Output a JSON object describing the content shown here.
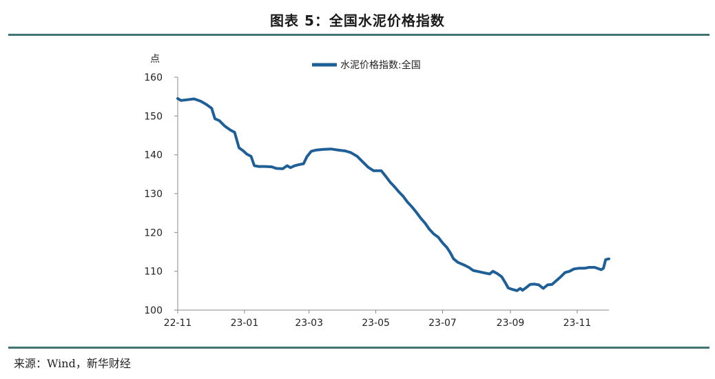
{
  "figure_title": "图表 5：全国水泥价格指数",
  "source_note": "来源：Wind，新华财经",
  "colors": {
    "series": "#1f5f97",
    "rule": "#3f7472",
    "axis": "#888888"
  },
  "chart_data": {
    "type": "line",
    "title": "",
    "ylabel": "点",
    "xlabel": "",
    "ylim": [
      100,
      160
    ],
    "yticks": [
      100,
      110,
      120,
      130,
      140,
      150,
      160
    ],
    "xlim": [
      "2022-11-01",
      "2023-11-30"
    ],
    "xtick_labels": [
      {
        "date": "2022-11-01",
        "label": "22-11"
      },
      {
        "date": "2023-01-01",
        "label": "23-01"
      },
      {
        "date": "2023-03-01",
        "label": "23-03"
      },
      {
        "date": "2023-05-01",
        "label": "23-05"
      },
      {
        "date": "2023-07-01",
        "label": "23-07"
      },
      {
        "date": "2023-09-01",
        "label": "23-09"
      },
      {
        "date": "2023-11-01",
        "label": "23-11"
      }
    ],
    "grid": false,
    "legend_position": "top-center",
    "series": [
      {
        "name": "水泥价格指数:全国",
        "points": [
          [
            "2022-11-01",
            154.5
          ],
          [
            "2022-11-04",
            154.0
          ],
          [
            "2022-11-10",
            154.2
          ],
          [
            "2022-11-16",
            154.4
          ],
          [
            "2022-11-22",
            153.8
          ],
          [
            "2022-11-27",
            153.0
          ],
          [
            "2022-12-02",
            152.0
          ],
          [
            "2022-12-05",
            149.3
          ],
          [
            "2022-12-09",
            148.8
          ],
          [
            "2022-12-14",
            147.4
          ],
          [
            "2022-12-19",
            146.4
          ],
          [
            "2022-12-23",
            145.8
          ],
          [
            "2022-12-27",
            141.8
          ],
          [
            "2022-12-31",
            141.0
          ],
          [
            "2023-01-03",
            140.2
          ],
          [
            "2023-01-07",
            139.6
          ],
          [
            "2023-01-10",
            137.2
          ],
          [
            "2023-01-14",
            137.0
          ],
          [
            "2023-01-20",
            137.0
          ],
          [
            "2023-01-26",
            136.9
          ],
          [
            "2023-01-30",
            136.5
          ],
          [
            "2023-02-05",
            136.4
          ],
          [
            "2023-02-09",
            137.2
          ],
          [
            "2023-02-12",
            136.7
          ],
          [
            "2023-02-16",
            137.2
          ],
          [
            "2023-02-20",
            137.5
          ],
          [
            "2023-02-24",
            137.7
          ],
          [
            "2023-02-27",
            139.5
          ],
          [
            "2023-03-03",
            140.9
          ],
          [
            "2023-03-07",
            141.2
          ],
          [
            "2023-03-14",
            141.4
          ],
          [
            "2023-03-21",
            141.5
          ],
          [
            "2023-03-28",
            141.2
          ],
          [
            "2023-04-03",
            141.0
          ],
          [
            "2023-04-08",
            140.6
          ],
          [
            "2023-04-14",
            139.6
          ],
          [
            "2023-04-19",
            138.2
          ],
          [
            "2023-04-24",
            136.8
          ],
          [
            "2023-04-29",
            135.9
          ],
          [
            "2023-05-06",
            135.9
          ],
          [
            "2023-05-10",
            134.5
          ],
          [
            "2023-05-14",
            133.0
          ],
          [
            "2023-05-18",
            131.8
          ],
          [
            "2023-05-22",
            130.5
          ],
          [
            "2023-05-26",
            129.3
          ],
          [
            "2023-05-30",
            127.8
          ],
          [
            "2023-06-03",
            126.6
          ],
          [
            "2023-06-07",
            125.2
          ],
          [
            "2023-06-11",
            123.7
          ],
          [
            "2023-06-15",
            122.4
          ],
          [
            "2023-06-19",
            120.8
          ],
          [
            "2023-06-23",
            119.6
          ],
          [
            "2023-06-27",
            118.8
          ],
          [
            "2023-07-01",
            117.3
          ],
          [
            "2023-07-05",
            116.1
          ],
          [
            "2023-07-08",
            114.8
          ],
          [
            "2023-07-11",
            113.2
          ],
          [
            "2023-07-15",
            112.3
          ],
          [
            "2023-07-20",
            111.7
          ],
          [
            "2023-07-25",
            111.0
          ],
          [
            "2023-07-29",
            110.2
          ],
          [
            "2023-08-03",
            109.9
          ],
          [
            "2023-08-08",
            109.6
          ],
          [
            "2023-08-13",
            109.3
          ],
          [
            "2023-08-16",
            110.0
          ],
          [
            "2023-08-20",
            109.4
          ],
          [
            "2023-08-24",
            108.6
          ],
          [
            "2023-08-27",
            107.2
          ],
          [
            "2023-08-30",
            105.7
          ],
          [
            "2023-09-03",
            105.3
          ],
          [
            "2023-09-07",
            105.0
          ],
          [
            "2023-09-10",
            105.6
          ],
          [
            "2023-09-12",
            105.1
          ],
          [
            "2023-09-15",
            105.7
          ],
          [
            "2023-09-19",
            106.6
          ],
          [
            "2023-09-23",
            106.7
          ],
          [
            "2023-09-27",
            106.5
          ],
          [
            "2023-10-01",
            105.6
          ],
          [
            "2023-10-05",
            106.5
          ],
          [
            "2023-10-09",
            106.6
          ],
          [
            "2023-10-13",
            107.6
          ],
          [
            "2023-10-17",
            108.6
          ],
          [
            "2023-10-21",
            109.7
          ],
          [
            "2023-10-25",
            110.0
          ],
          [
            "2023-10-29",
            110.6
          ],
          [
            "2023-11-03",
            110.8
          ],
          [
            "2023-11-08",
            110.8
          ],
          [
            "2023-11-12",
            111.0
          ],
          [
            "2023-11-17",
            111.0
          ],
          [
            "2023-11-21",
            110.6
          ],
          [
            "2023-11-23",
            110.4
          ],
          [
            "2023-11-25",
            110.8
          ],
          [
            "2023-11-27",
            113.0
          ],
          [
            "2023-11-30",
            113.2
          ]
        ]
      }
    ]
  }
}
